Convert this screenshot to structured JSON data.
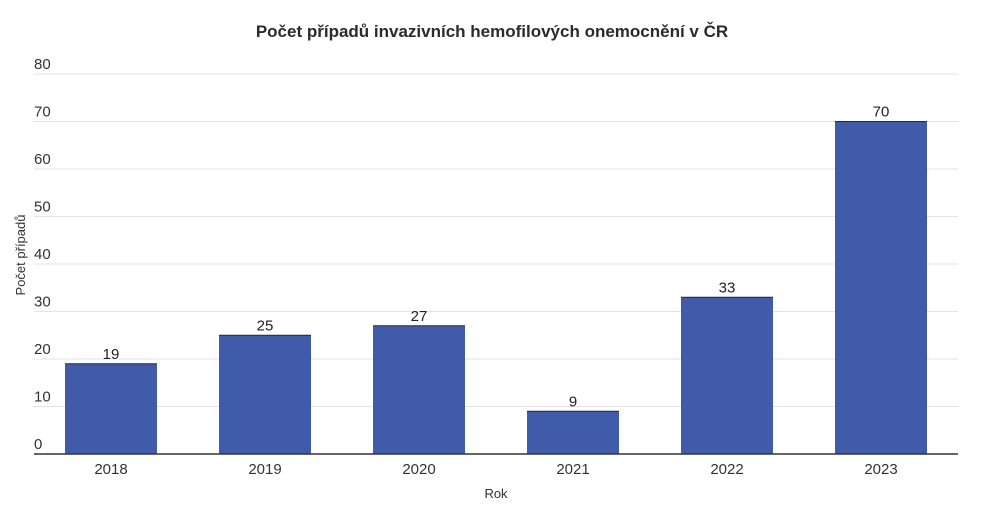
{
  "chart_data": {
    "type": "bar",
    "title": "Počet případů invazivních hemofilových onemocnění v ČR",
    "xlabel": "Rok",
    "ylabel": "Počet případů",
    "categories": [
      "2018",
      "2019",
      "2020",
      "2021",
      "2022",
      "2023"
    ],
    "values": [
      19,
      25,
      27,
      9,
      33,
      70
    ],
    "ylim": [
      0,
      80
    ],
    "yticks": [
      0,
      10,
      20,
      30,
      40,
      50,
      60,
      70,
      80
    ],
    "grid": true,
    "bar_color": "#3f5ba9",
    "grid_color": "#e3e3e3",
    "axis_color": "#333333"
  }
}
